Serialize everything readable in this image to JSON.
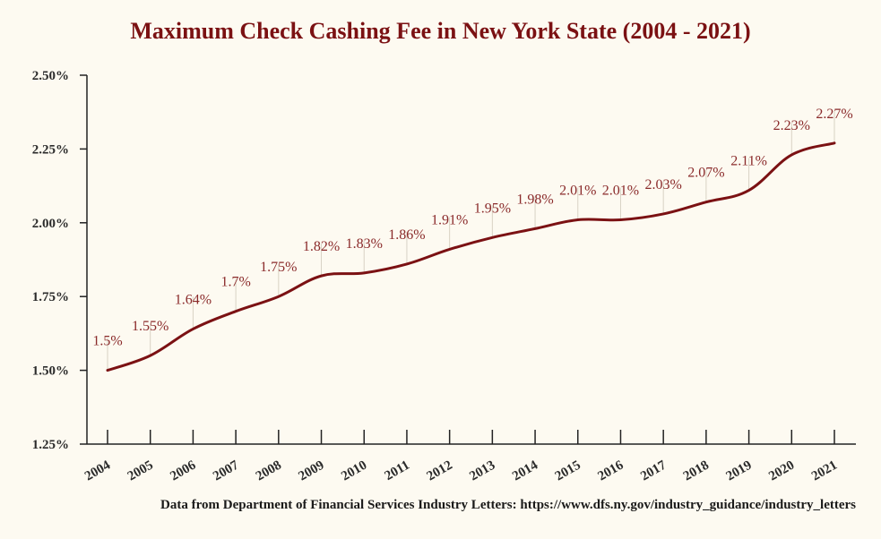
{
  "title": "Maximum Check Cashing Fee in New York State (2004 - 2021)",
  "source": "Data from Department of Financial Services Industry Letters: https://www.dfs.ny.gov/industry_guidance/industry_letters",
  "colors": {
    "background": "#fdfaf1",
    "line": "#7b1113",
    "title": "#7b1113",
    "label": "#8a2a2a"
  },
  "chart_data": {
    "type": "line",
    "title": "Maximum Check Cashing Fee in New York State (2004 - 2021)",
    "xlabel": "",
    "ylabel": "",
    "x": [
      "2004",
      "2005",
      "2006",
      "2007",
      "2008",
      "2009",
      "2010",
      "2011",
      "2012",
      "2013",
      "2014",
      "2015",
      "2016",
      "2017",
      "2018",
      "2019",
      "2020",
      "2021"
    ],
    "values": [
      1.5,
      1.55,
      1.64,
      1.7,
      1.75,
      1.82,
      1.83,
      1.86,
      1.91,
      1.95,
      1.98,
      2.01,
      2.01,
      2.03,
      2.07,
      2.11,
      2.23,
      2.27
    ],
    "data_labels": [
      "1.5%",
      "1.55%",
      "1.64%",
      "1.7%",
      "1.75%",
      "1.82%",
      "1.83%",
      "1.86%",
      "1.91%",
      "1.95%",
      "1.98%",
      "2.01%",
      "2.01%",
      "2.03%",
      "2.07%",
      "2.11%",
      "2.23%",
      "2.27%"
    ],
    "ylim": [
      1.25,
      2.5
    ],
    "y_ticks": [
      1.25,
      1.5,
      1.75,
      2.0,
      2.25,
      2.5
    ],
    "y_tick_labels": [
      "1.25%",
      "1.50%",
      "1.75%",
      "2.00%",
      "2.25%",
      "2.50%"
    ],
    "grid": false,
    "smooth": true
  }
}
